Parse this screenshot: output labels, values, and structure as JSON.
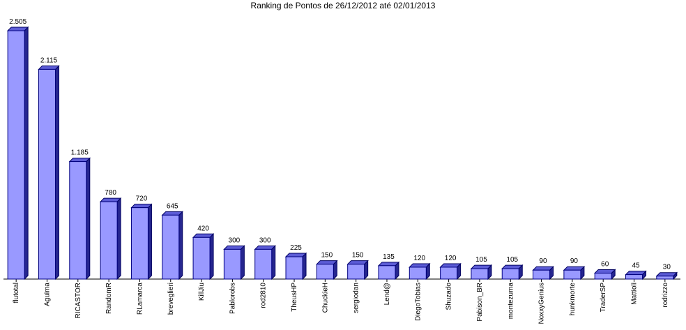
{
  "chart_data": {
    "type": "bar3d",
    "title": "Ranking de Pontos de 26/12/2012 até 02/01/2013",
    "categories": [
      "flutotal",
      "Aguima",
      "RICASTOR",
      "RandomR",
      "RLamarca",
      "breveglieri",
      "KillJiu",
      "Pablorobs",
      "rod2810",
      "TheusHP",
      "ChuckieH",
      "sergiodan",
      "Lend@",
      "DiegoTobias",
      "Shuzado",
      "Pabison_BR",
      "montezuma",
      "NoxxyGenius",
      "hunkmorte",
      "TraderSP",
      "Mattioli",
      "rodrizzo"
    ],
    "values": [
      2505,
      2115,
      1185,
      780,
      720,
      645,
      420,
      300,
      300,
      225,
      150,
      150,
      135,
      120,
      120,
      105,
      105,
      90,
      90,
      60,
      45,
      30
    ],
    "value_labels": [
      "2.505",
      "2.115",
      "1.185",
      "780",
      "720",
      "645",
      "420",
      "300",
      "300",
      "225",
      "150",
      "150",
      "135",
      "120",
      "120",
      "105",
      "105",
      "90",
      "90",
      "60",
      "45",
      "30"
    ],
    "color": "#9999ff"
  }
}
